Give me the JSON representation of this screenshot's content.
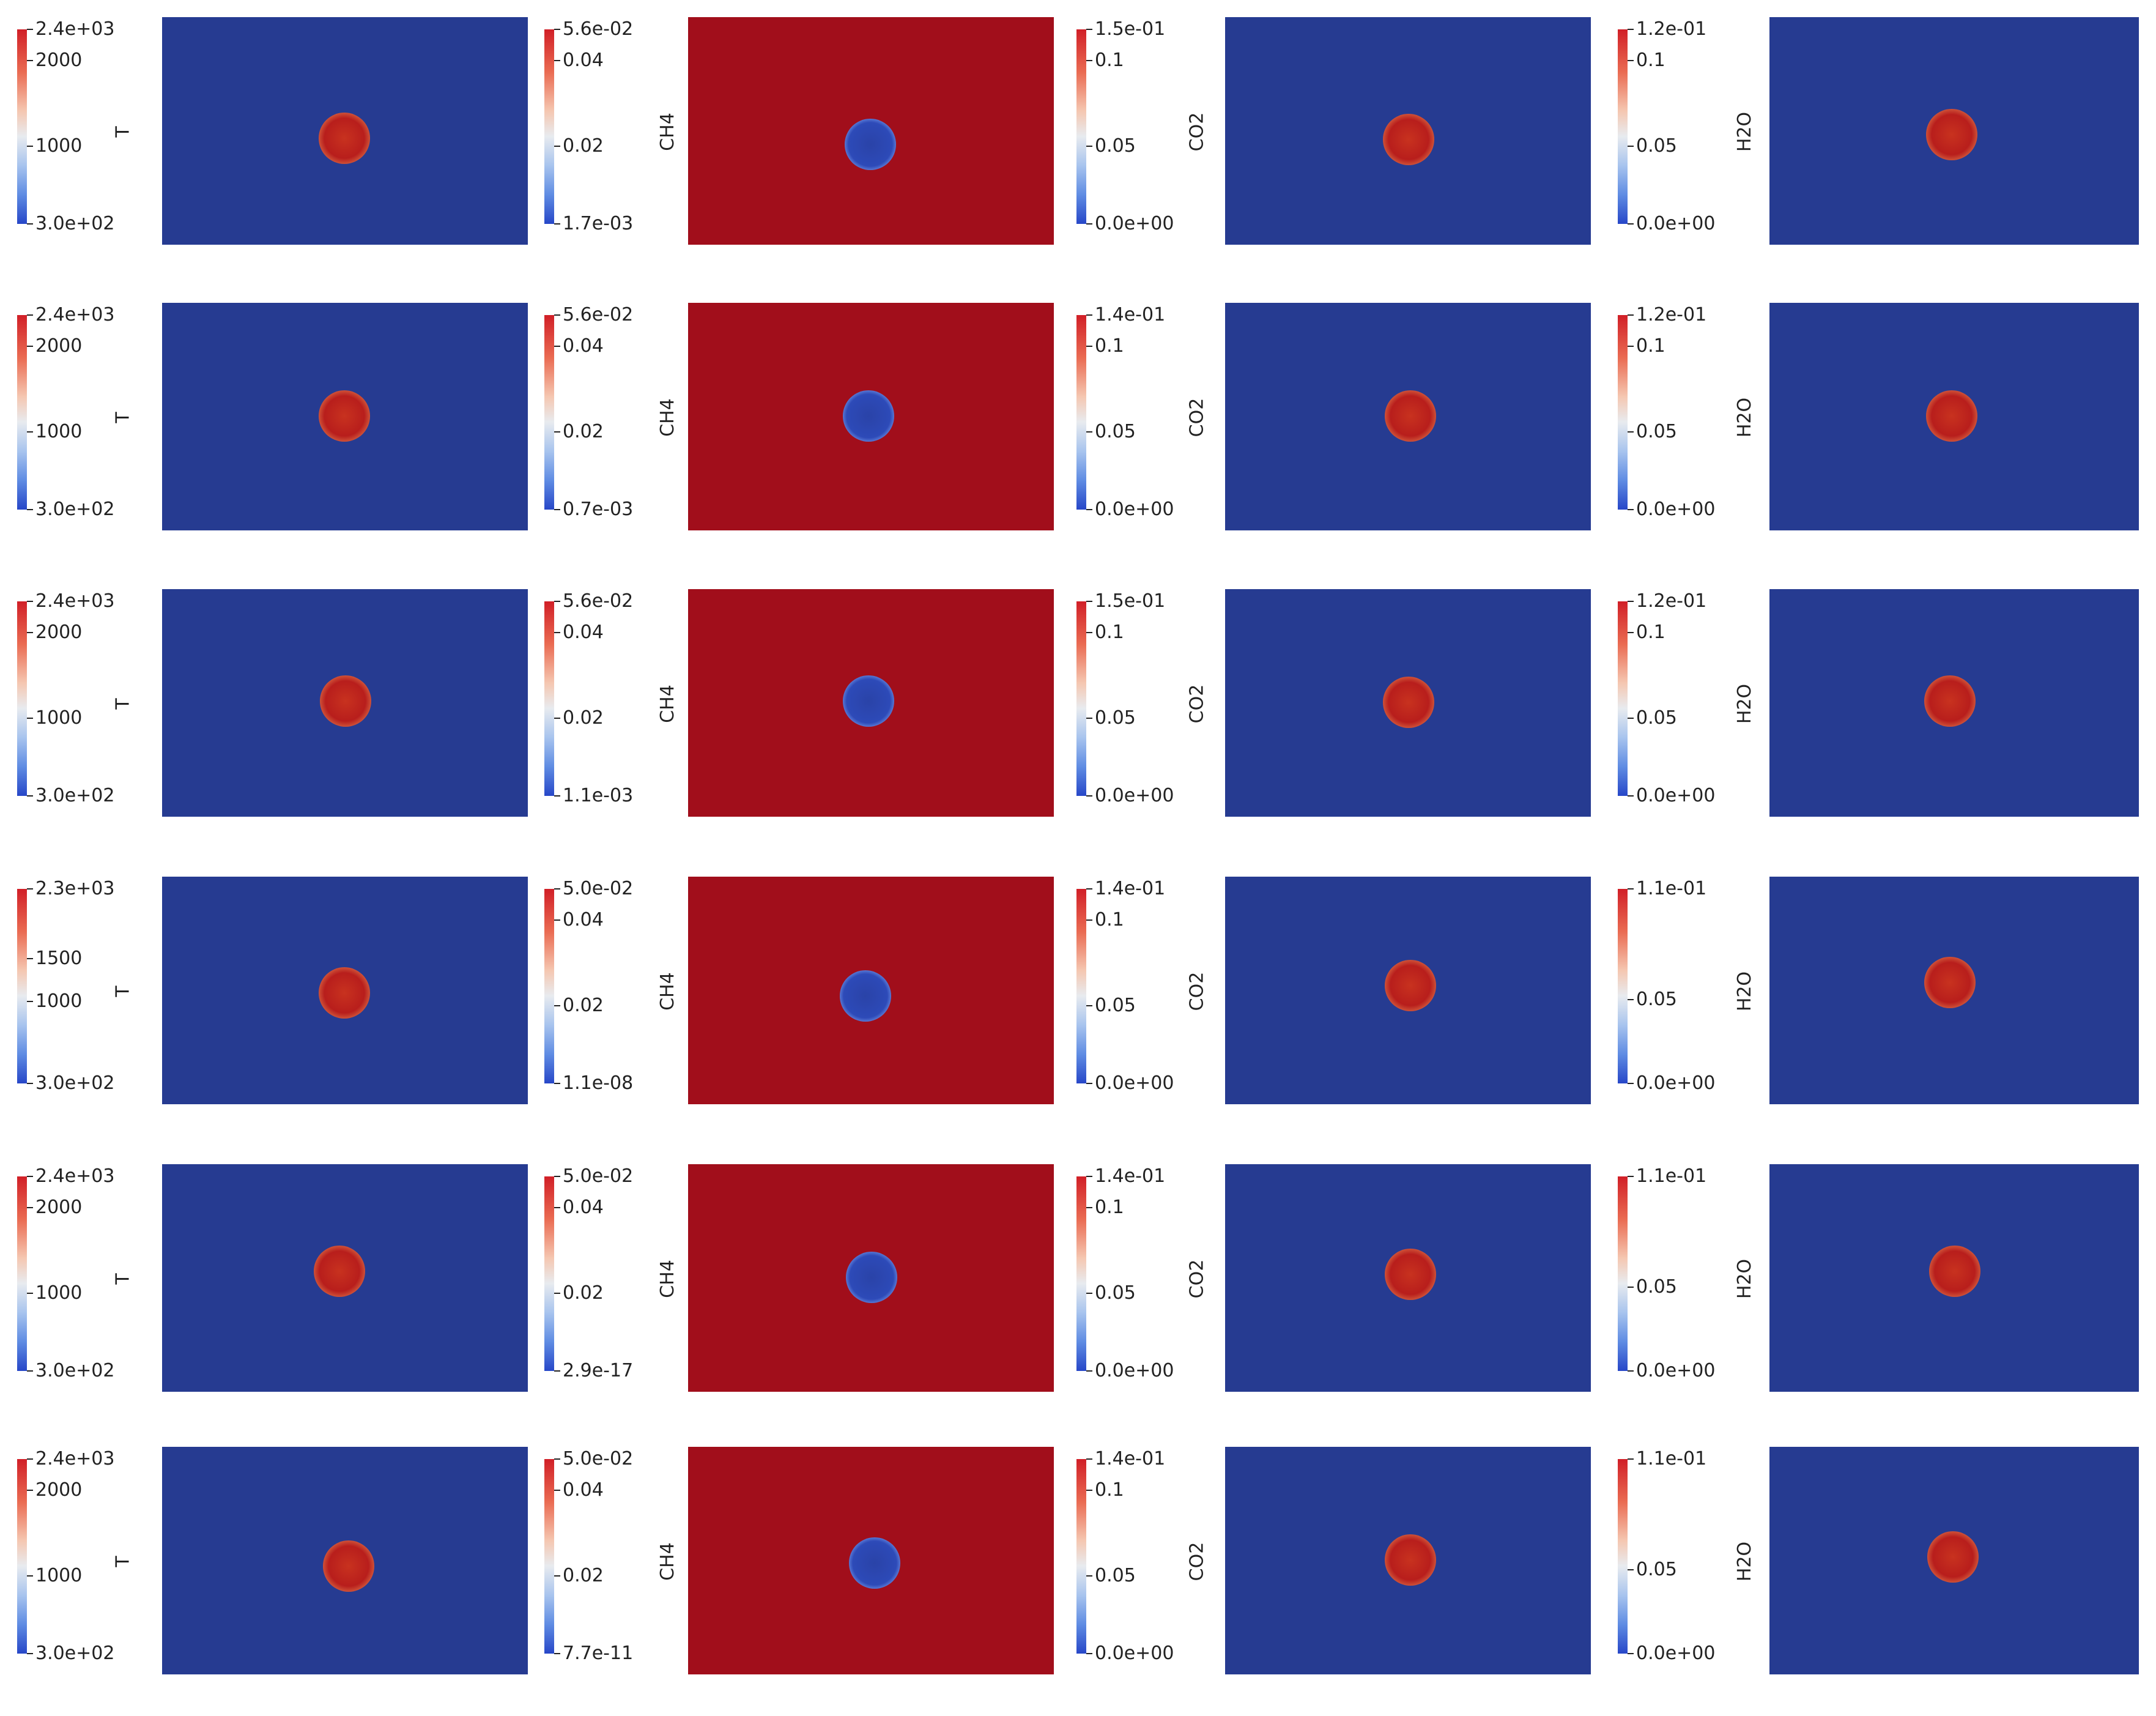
{
  "panels": [
    {
      "T": {
        "labels": [
          "2.4e+03",
          "2000",
          "1000",
          "3.0e+02"
        ]
      },
      "CH4": {
        "labels": [
          "5.6e-02",
          "0.04",
          "0.02",
          "1.7e-03"
        ]
      },
      "CO2": {
        "labels": [
          "1.5e-01",
          "0.1",
          "0.05",
          "0.0e+00"
        ]
      },
      "H2O": {
        "labels": [
          "1.2e-01",
          "0.1",
          "0.05",
          "0.0e+00"
        ]
      }
    },
    {
      "T": {
        "labels": [
          "2.4e+03",
          "2000",
          "1000",
          "3.0e+02"
        ]
      },
      "CH4": {
        "labels": [
          "5.6e-02",
          "0.04",
          "0.02",
          "0.7e-03"
        ]
      },
      "CO2": {
        "labels": [
          "1.4e-01",
          "0.1",
          "0.05",
          "0.0e+00"
        ]
      },
      "H2O": {
        "labels": [
          "1.2e-01",
          "0.1",
          "0.05",
          "0.0e+00"
        ]
      }
    },
    {
      "T": {
        "labels": [
          "2.4e+03",
          "2000",
          "1000",
          "3.0e+02"
        ]
      },
      "CH4": {
        "labels": [
          "5.6e-02",
          "0.04",
          "0.02",
          "1.1e-03"
        ]
      },
      "CO2": {
        "labels": [
          "1.5e-01",
          "0.1",
          "0.05",
          "0.0e+00"
        ]
      },
      "H2O": {
        "labels": [
          "1.2e-01",
          "0.1",
          "0.05",
          "0.0e+00"
        ]
      }
    },
    {
      "T": {
        "labels": [
          "2.3e+03",
          "1500",
          "1000",
          "3.0e+02"
        ]
      },
      "CH4": {
        "labels": [
          "5.0e-02",
          "0.04",
          "0.02",
          "1.1e-08"
        ]
      },
      "CO2": {
        "labels": [
          "1.4e-01",
          "0.1",
          "0.05",
          "0.0e+00"
        ]
      },
      "H2O": {
        "labels": [
          "1.1e-01",
          "0.05",
          "0.0e+00"
        ]
      }
    },
    {
      "T": {
        "labels": [
          "2.4e+03",
          "2000",
          "1000",
          "3.0e+02"
        ]
      },
      "CH4": {
        "labels": [
          "5.0e-02",
          "0.04",
          "0.02",
          "2.9e-17"
        ]
      },
      "CO2": {
        "labels": [
          "1.4e-01",
          "0.1",
          "0.05",
          "0.0e+00"
        ]
      },
      "H2O": {
        "labels": [
          "1.1e-01",
          "0.05",
          "0.0e+00"
        ]
      }
    },
    {
      "T": {
        "labels": [
          "2.4e+03",
          "2000",
          "1000",
          "3.0e+02"
        ]
      },
      "CH4": {
        "labels": [
          "5.0e-02",
          "0.04",
          "0.02",
          "7.7e-11"
        ]
      },
      "CO2": {
        "labels": [
          "1.4e-01",
          "0.1",
          "0.05",
          "0.0e+00"
        ]
      },
      "H2O": {
        "labels": [
          "1.1e-01",
          "0.05",
          "0.0e+00"
        ]
      }
    }
  ],
  "variable_names": [
    "T",
    "CH4",
    "CO2",
    "H2O"
  ],
  "colors": {
    "background_blue": "#263b91",
    "background_red": "#a10e1b",
    "colormap": "Cool to Warm"
  }
}
